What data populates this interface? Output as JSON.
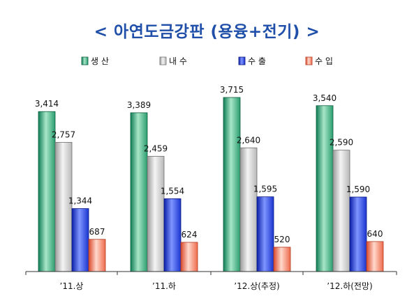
{
  "chart_data": {
    "type": "bar",
    "title": "< 아연도금강판 (용융+전기) >",
    "categories": [
      "’11.상",
      "’11.하",
      "’12.상(추정)",
      "’12.하(전망)"
    ],
    "series": [
      {
        "name": "생 산",
        "values": [
          3414,
          3389,
          3715,
          3540
        ],
        "color": "#1f9a6c"
      },
      {
        "name": "내 수",
        "values": [
          2757,
          2459,
          2640,
          2590
        ],
        "color": "#c0c0c0"
      },
      {
        "name": "수 출",
        "values": [
          1344,
          1554,
          1595,
          1590
        ],
        "color": "#1f3fd8"
      },
      {
        "name": "수 입",
        "values": [
          687,
          624,
          520,
          640
        ],
        "color": "#ef6a4a"
      }
    ],
    "value_labels": [
      [
        "3,414",
        "3,389",
        "3,715",
        "3,540"
      ],
      [
        "2,757",
        "2,459",
        "2,640",
        "2,590"
      ],
      [
        "1,344",
        "1,554",
        "1,595",
        "1,590"
      ],
      [
        "687",
        "624",
        "520",
        "640"
      ]
    ],
    "ylim": [
      0,
      4000
    ],
    "grid": false,
    "legend_position": "top",
    "xlabel": "",
    "ylabel": ""
  }
}
